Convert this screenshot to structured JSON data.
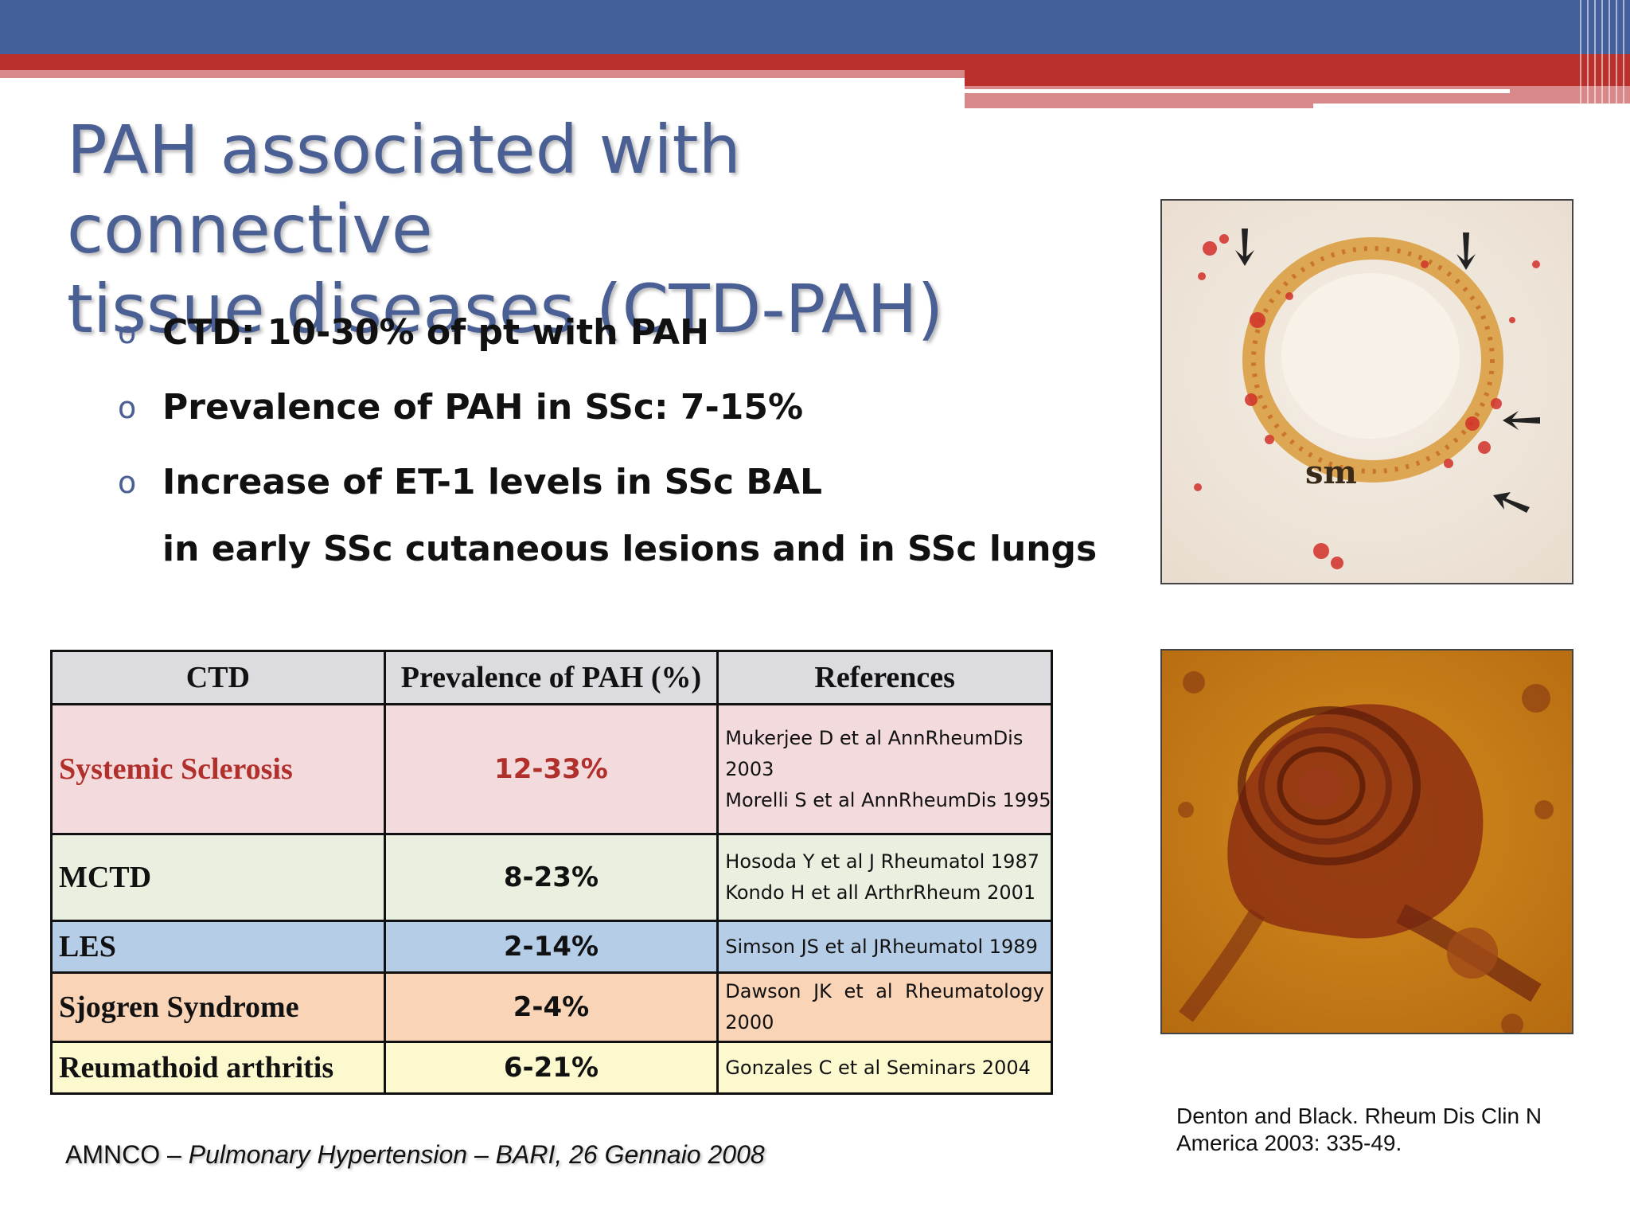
{
  "slide": {
    "title_line1": "PAH associated with connective",
    "title_line2": "tissue diseases (CTD-PAH)",
    "bullets": [
      "CTD: 10-30% of pt with PAH",
      "Prevalence of PAH in SSc: 7-15%",
      "Increase of ET-1 levels in SSc BAL",
      "in early SSc cutaneous lesions and in SSc lungs"
    ],
    "bullet_marker": "o"
  },
  "table": {
    "headers": [
      "CTD",
      "Prevalence of PAH (%)",
      "References"
    ],
    "rows": [
      {
        "ctd": "Systemic Sclerosis",
        "prevalence": "12-33%",
        "refs": [
          "Mukerjee D et al AnnRheumDis",
          "2003",
          "Morelli S et al AnnRheumDis 1995"
        ]
      },
      {
        "ctd": "MCTD",
        "prevalence": "8-23%",
        "refs": [
          "Hosoda Y et al J Rheumatol 1987",
          "Kondo H et all ArthrRheum 2001"
        ]
      },
      {
        "ctd": "LES",
        "prevalence": "2-14%",
        "refs": [
          "Simson JS et al JRheumatol 1989"
        ]
      },
      {
        "ctd": "Sjogren Syndrome",
        "prevalence": "2-4%",
        "refs_words": [
          "Dawson",
          "JK",
          "et",
          "al",
          "Rheumatology"
        ],
        "refs": [
          "2000"
        ]
      },
      {
        "ctd": "Reumathoid arthritis",
        "prevalence": "6-21%",
        "refs": [
          "Gonzales C et al Seminars 2004"
        ]
      }
    ]
  },
  "image1": {
    "label": "sm"
  },
  "citation": {
    "line1": "Denton and Black. Rheum Dis Clin N",
    "line2": "America 2003: 335-49."
  },
  "footer": {
    "prefix": "AMNCO – ",
    "italic": "Pulmonary Hypertension – BARI, 26 Gennaio 2008"
  },
  "colors": {
    "title": "#4a5f94",
    "header_blue": "#43609c",
    "header_red": "#b9302c",
    "ssc_red": "#b2302c"
  }
}
